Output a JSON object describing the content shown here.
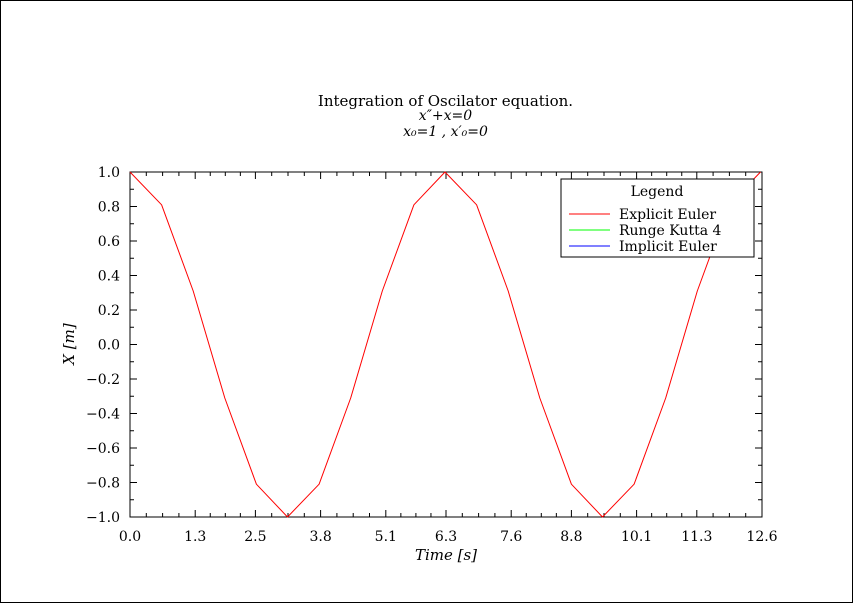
{
  "chart_data": {
    "type": "line",
    "title": "Integration of Oscilator equation.",
    "subtitle_lines": [
      "x″+x=0",
      "x₀=1 ,  x′₀=0"
    ],
    "xlabel": "Time  [s]",
    "ylabel": "X  [m]",
    "xlim": [
      0.0,
      12.6
    ],
    "ylim": [
      -1.0,
      1.0
    ],
    "xticks": [
      0.0,
      1.3,
      2.5,
      3.8,
      5.1,
      6.3,
      7.6,
      8.8,
      10.1,
      11.3,
      12.6
    ],
    "xtick_labels": [
      "0.0",
      "1.3",
      "2.5",
      "3.8",
      "5.1",
      "6.3",
      "7.6",
      "8.8",
      "10.1",
      "11.3",
      "12.6"
    ],
    "yticks": [
      1.0,
      0.8,
      0.6,
      0.4,
      0.2,
      0.0,
      -0.2,
      -0.4,
      -0.6,
      -0.8,
      -1.0
    ],
    "ytick_labels": [
      "1.0",
      "0.8",
      "0.6",
      "0.4",
      "0.2",
      "0.0",
      "−0.2",
      "−0.4",
      "−0.6",
      "−0.8",
      "−1.0"
    ],
    "legend_title": "Legend",
    "legend_position": "top-right",
    "grid": false,
    "series": [
      {
        "name": "Explicit Euler",
        "color": "#ff0000",
        "x": [
          0.0,
          0.63,
          1.26,
          1.89,
          2.52,
          3.14,
          3.77,
          4.4,
          5.03,
          5.66,
          6.28,
          6.91,
          7.54,
          8.17,
          8.8,
          9.42,
          10.05,
          10.68,
          11.31,
          11.94,
          12.57
        ],
        "y": [
          1.0,
          0.81,
          0.31,
          -0.31,
          -0.81,
          -1.0,
          -0.81,
          -0.31,
          0.31,
          0.81,
          1.0,
          0.81,
          0.31,
          -0.31,
          -0.81,
          -1.0,
          -0.81,
          -0.31,
          0.31,
          0.81,
          1.0
        ]
      },
      {
        "name": "Runge Kutta 4",
        "color": "#00ff00",
        "x": [],
        "y": []
      },
      {
        "name": "Implicit Euler",
        "color": "#0000ff",
        "x": [],
        "y": []
      }
    ]
  }
}
